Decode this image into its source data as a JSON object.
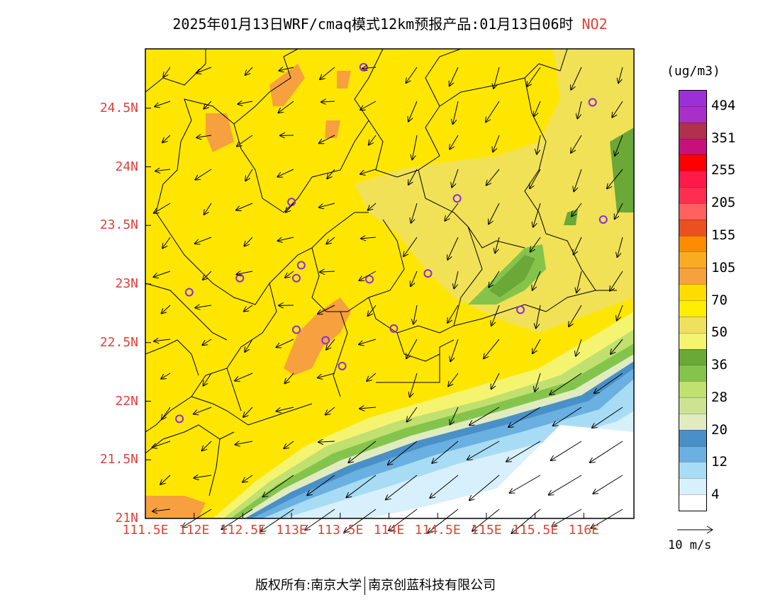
{
  "title": {
    "main": "2025年01月13日WRF/cmaq模式12km预报产品:01月13日06时",
    "pollutant": "NO2"
  },
  "axes": {
    "lat_labels": [
      "24.5N",
      "24N",
      "23.5N",
      "23N",
      "22.5N",
      "22N",
      "21.5N",
      "21N"
    ],
    "lon_labels": [
      "111.5E",
      "112E",
      "112.5E",
      "113E",
      "113.5E",
      "114E",
      "114.5E",
      "115E",
      "115.5E",
      "116E"
    ]
  },
  "colorbar": {
    "unit": "(ug/m3)",
    "colors": [
      "#9b30d8",
      "#a830c8",
      "#b0304e",
      "#c8107a",
      "#ff0000",
      "#ff1a4a",
      "#ff2e50",
      "#ff6060",
      "#ec5020",
      "#ff8c00",
      "#f8ac20",
      "#f6a040",
      "#ffdc00",
      "#ffee00",
      "#f0e060",
      "#f4f470",
      "#6aa838",
      "#84c44c",
      "#c0e070",
      "#cce490",
      "#e0ecc0",
      "#4a90c8",
      "#6ab0e0",
      "#a8dcf4",
      "#d8f0fc",
      "#ffffff"
    ],
    "labels": [
      "494",
      "351",
      "255",
      "205",
      "155",
      "105",
      "70",
      "50",
      "36",
      "28",
      "20",
      "12",
      "4"
    ]
  },
  "map": {
    "sites": [
      {
        "lon": 113.74,
        "lat": 24.85
      },
      {
        "lon": 116.09,
        "lat": 24.55
      },
      {
        "lon": 113.0,
        "lat": 23.7
      },
      {
        "lon": 114.7,
        "lat": 23.73
      },
      {
        "lon": 116.2,
        "lat": 23.55
      },
      {
        "lon": 113.1,
        "lat": 23.16
      },
      {
        "lon": 112.47,
        "lat": 23.05
      },
      {
        "lon": 113.05,
        "lat": 23.05
      },
      {
        "lon": 113.8,
        "lat": 23.04
      },
      {
        "lon": 114.4,
        "lat": 23.09
      },
      {
        "lon": 111.95,
        "lat": 22.93
      },
      {
        "lon": 115.35,
        "lat": 22.78
      },
      {
        "lon": 113.05,
        "lat": 22.61
      },
      {
        "lon": 114.05,
        "lat": 22.62
      },
      {
        "lon": 113.35,
        "lat": 22.52
      },
      {
        "lon": 113.52,
        "lat": 22.3
      },
      {
        "lon": 111.85,
        "lat": 21.85
      }
    ]
  },
  "vector_reference": "10 m/s",
  "footer": {
    "left": "版权所有:南京大学",
    "right": "南京创蓝科技有限公司"
  }
}
